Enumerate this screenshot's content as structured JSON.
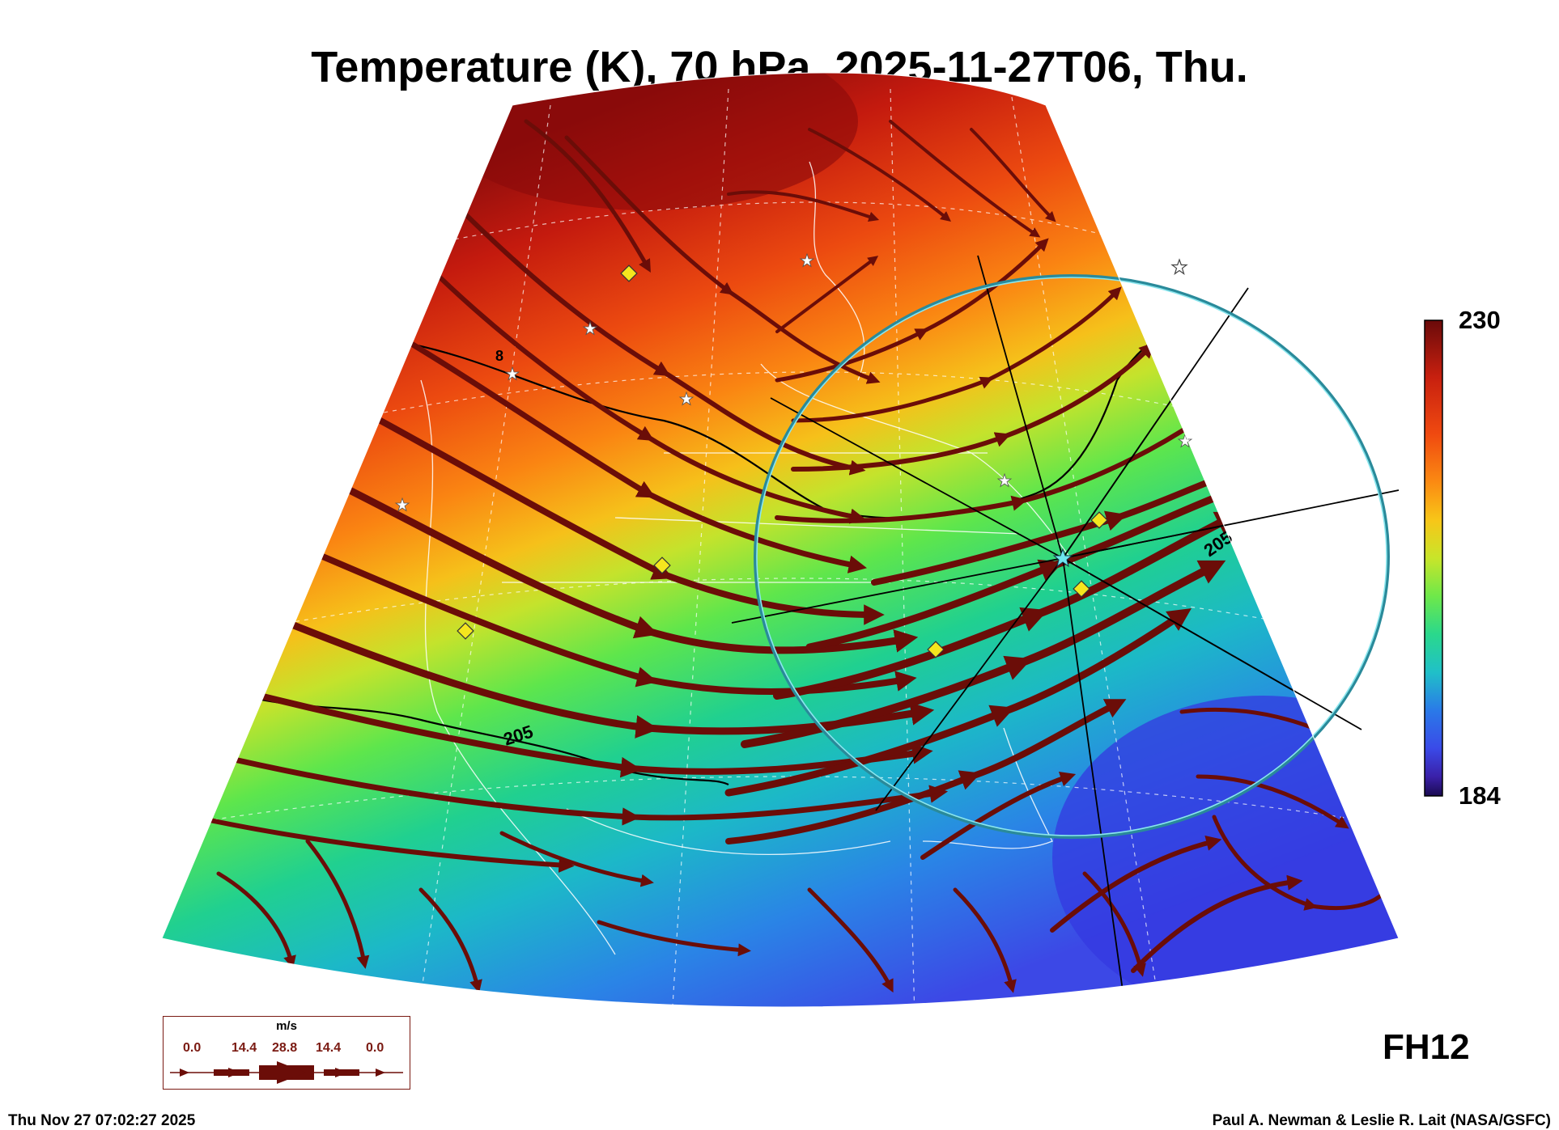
{
  "title": "Temperature (K), 70 hPa, 2025-11-27T06, Thu.",
  "colorbar": {
    "max_label": "230",
    "min_label": "184",
    "stops": [
      "#6a0a0a",
      "#c8200f",
      "#f04a10",
      "#fb8a12",
      "#f8c618",
      "#c8e52a",
      "#6ee84a",
      "#2ad88c",
      "#20c0c8",
      "#2a7ae8",
      "#3a4ae8",
      "#3a20a8",
      "#1a0a50"
    ]
  },
  "contour_labels": {
    "west": "205",
    "east": "205",
    "north": "8"
  },
  "forecast_hour": "FH12",
  "legend": {
    "unit": "m/s",
    "values": [
      "0.0",
      "14.4",
      "28.8",
      "14.4",
      "0.0"
    ]
  },
  "timestamp": "Thu Nov 27 07:02:27 2025",
  "credit": "Paul A. Newman & Leslie R. Lait (NASA/GSFC)",
  "colors": {
    "streamline": "#6b0d08",
    "ring": "#5ad0dc",
    "marker": "#f5e61e"
  }
}
